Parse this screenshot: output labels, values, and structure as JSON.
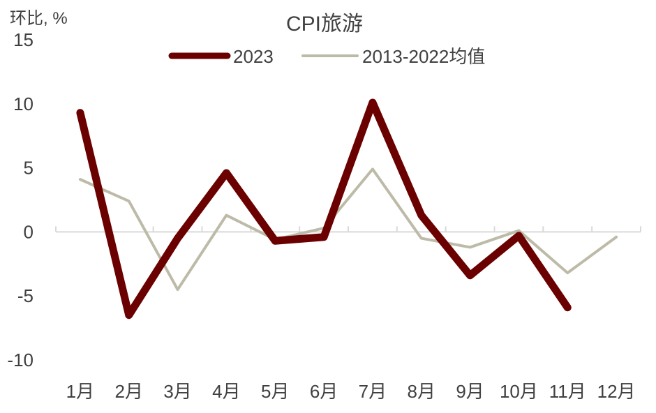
{
  "chart_data": {
    "type": "line",
    "title": "CPI旅游",
    "ylabel": "环比, %",
    "xlabel": "",
    "categories": [
      "1月",
      "2月",
      "3月",
      "4月",
      "5月",
      "6月",
      "7月",
      "8月",
      "9月",
      "10月",
      "11月",
      "12月"
    ],
    "ylim": [
      -10,
      15
    ],
    "yticks": [
      "15",
      "10",
      "5",
      "0",
      "-5",
      "-10"
    ],
    "series": [
      {
        "name": "2023",
        "color": "#6b0000",
        "values": [
          9.3,
          -6.5,
          -0.5,
          4.6,
          -0.7,
          -0.4,
          10.1,
          1.3,
          -3.4,
          -0.3,
          -5.9,
          null
        ]
      },
      {
        "name": "2013-2022均值",
        "color": "#bdbba8",
        "values": [
          4.1,
          2.4,
          -4.5,
          1.3,
          -0.6,
          0.3,
          4.9,
          -0.5,
          -1.2,
          0.1,
          -3.2,
          -0.4
        ]
      }
    ],
    "legend_position": "top",
    "grid": false
  }
}
